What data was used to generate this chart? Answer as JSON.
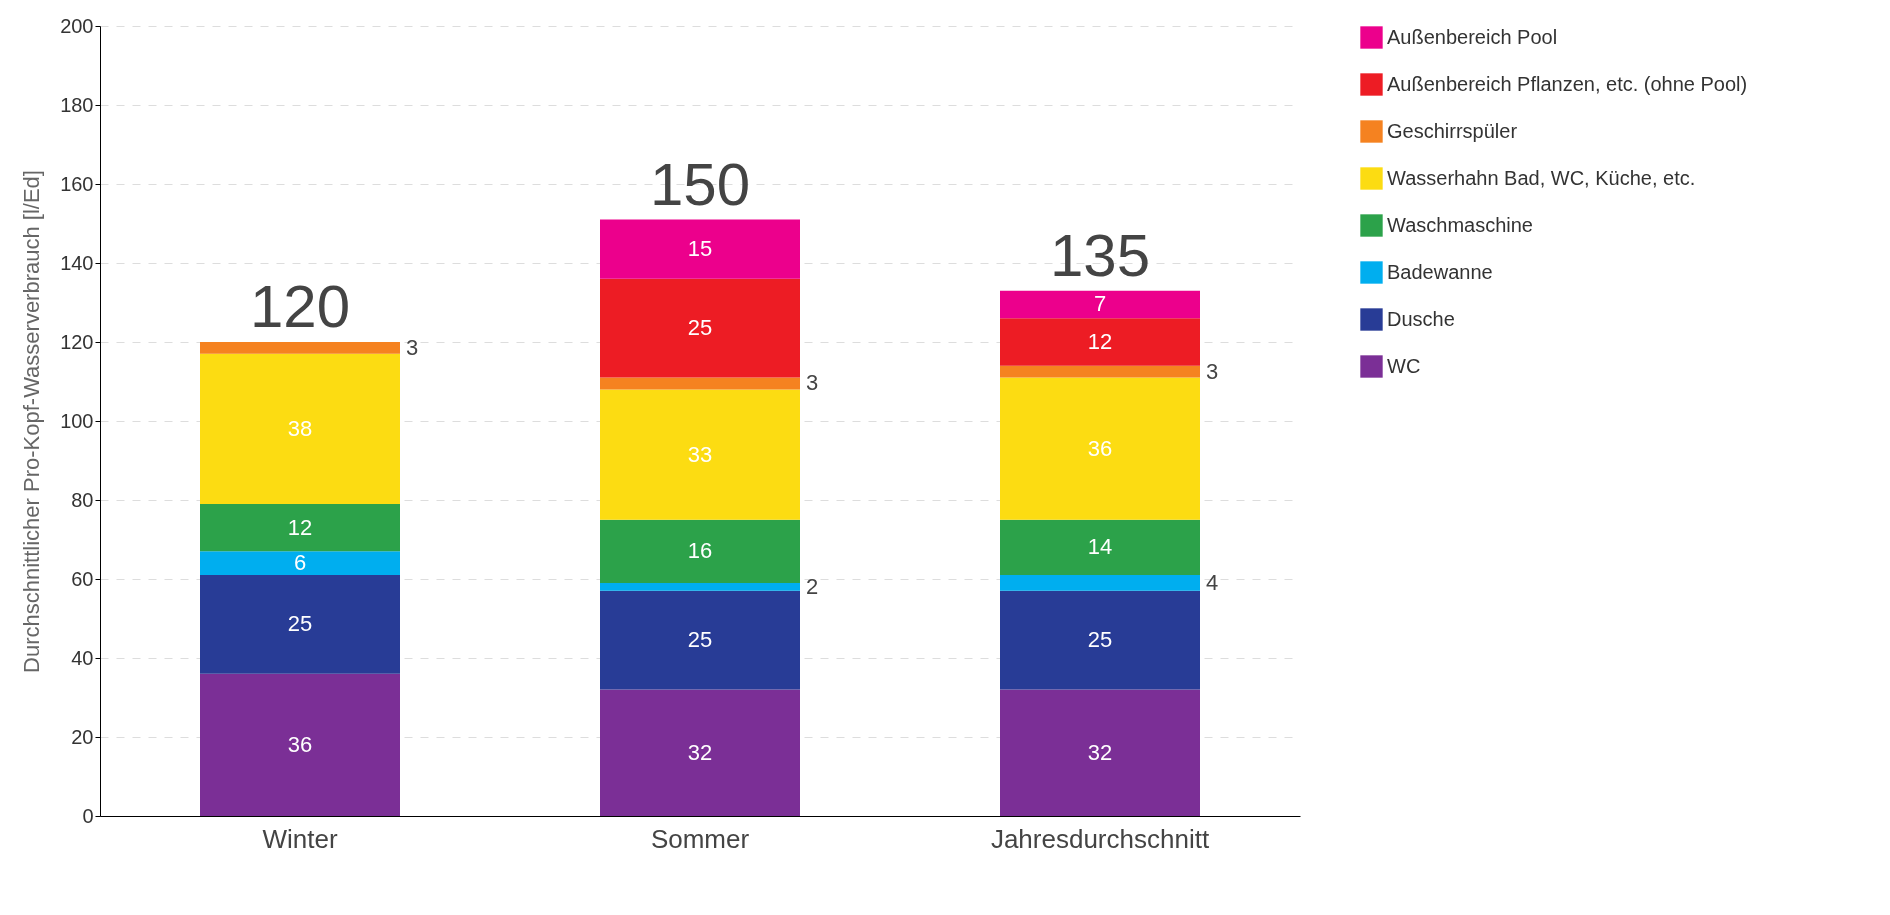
{
  "chart_data": {
    "type": "bar",
    "stacked": true,
    "ylabel": "Durchschnittlicher Pro-Kopf-Wasserverbrauch [l/Ed]",
    "categories": [
      "Winter",
      "Sommer",
      "Jahresdurchschnitt"
    ],
    "series": [
      {
        "name": "WC",
        "color": "#7b2f96",
        "values": [
          36,
          32,
          32
        ]
      },
      {
        "name": "Dusche",
        "color": "#283c96",
        "values": [
          25,
          25,
          25
        ]
      },
      {
        "name": "Badewanne",
        "color": "#00aeef",
        "values": [
          6,
          2,
          4
        ]
      },
      {
        "name": "Waschmaschine",
        "color": "#2ca24a",
        "values": [
          12,
          16,
          14
        ]
      },
      {
        "name": "Wasserhahn Bad, WC, Küche, etc.",
        "color": "#fcdc12",
        "values": [
          38,
          33,
          36
        ]
      },
      {
        "name": "Geschirrspüler",
        "color": "#f58220",
        "values": [
          3,
          3,
          3
        ]
      },
      {
        "name": "Außenbereich Pflanzen, etc. (ohne Pool)",
        "color": "#ed1c24",
        "values": [
          null,
          25,
          12
        ]
      },
      {
        "name": "Außenbereich Pool",
        "color": "#ec008c",
        "values": [
          null,
          15,
          7
        ]
      }
    ],
    "totals": [
      "120",
      "150",
      "135"
    ],
    "data_labels": true,
    "ylim": [
      0,
      200
    ],
    "yticks": [
      0,
      20,
      40,
      60,
      80,
      100,
      120,
      140,
      160,
      180,
      200
    ],
    "grid": "y",
    "legend": "right"
  }
}
